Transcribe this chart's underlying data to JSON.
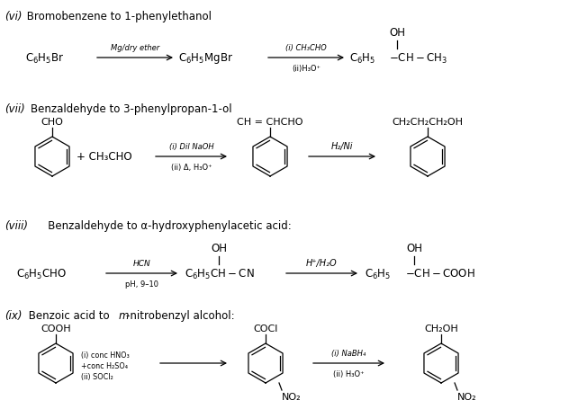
{
  "bg_color": "#ffffff",
  "fig_width": 6.42,
  "fig_height": 4.56,
  "dpi": 100,
  "vi_title_italic": "(vi)",
  "vi_title_normal": " Bromobenzene to 1-phenylethanol",
  "vii_title_italic": "(vii)",
  "vii_title_normal": "Benzaldehyde to 3-phenylpropan-1-ol",
  "viii_title_italic": "(viii)",
  "viii_title_normal": "   Benzaldehyde to α-hydroxyphenylacetic acid:",
  "ix_title_italic": "(ix)",
  "ix_title_normal": " Benzoic acid to ",
  "ix_title_italic2": "m",
  "ix_title_normal2": "-nitrobenzyl alcohol:"
}
